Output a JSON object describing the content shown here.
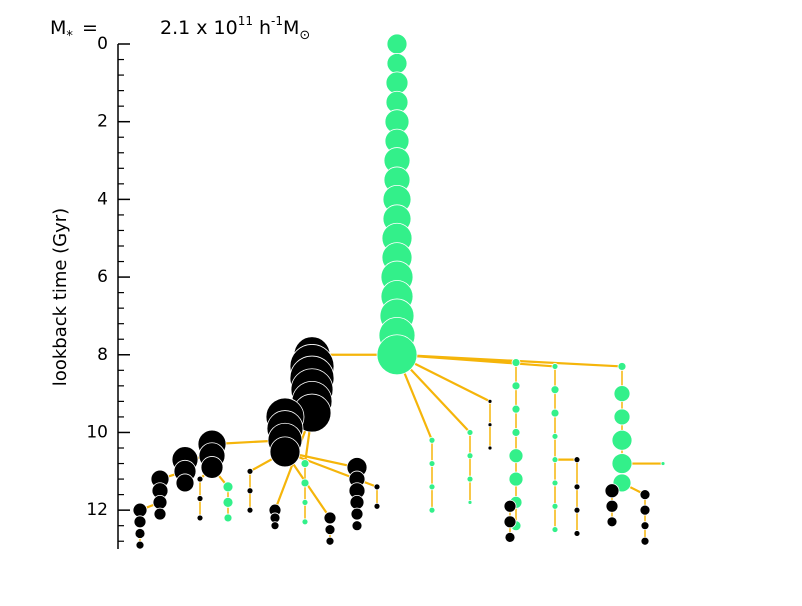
{
  "chart_data": {
    "type": "merger_tree",
    "title": {
      "symbol": "M",
      "symbol_sub": "*",
      "equals": "=",
      "mantissa": "2.1 x 10",
      "exponent": "11",
      "unit": "h",
      "unit_exp": "-1",
      "unit_symbol": "M",
      "unit_sub": "⊙"
    },
    "ylabel": "lookback time (Gyr)",
    "ylim": [
      0,
      13
    ],
    "yticks": [
      0,
      2,
      4,
      6,
      8,
      10,
      12
    ],
    "minor_yticks": [
      0.4,
      0.8,
      1.2,
      1.6,
      2.4,
      2.8,
      3.2,
      3.6,
      4.4,
      4.8,
      5.2,
      5.6,
      6.4,
      6.8,
      7.2,
      7.6,
      8.4,
      8.8,
      9.2,
      9.6,
      10.4,
      10.8,
      11.2,
      11.6,
      12.4,
      12.8
    ],
    "y_inverted": true,
    "link_color": "#f5b50a",
    "branches": [
      {
        "color": "#33f08a",
        "parent": null,
        "times": [
          0,
          0.5,
          1,
          1.5,
          2,
          2.5,
          3,
          3.5,
          4,
          4.5,
          5,
          5.5,
          6,
          6.5,
          7,
          7.5,
          8
        ],
        "sizes": [
          10,
          10,
          11,
          11,
          12,
          12,
          13,
          13,
          14,
          14,
          15,
          15,
          16,
          16,
          17,
          18,
          20
        ]
      },
      {
        "color": "#000000",
        "parent": 0,
        "times": [
          8.0,
          8.3,
          8.6,
          8.9,
          9.2,
          9.5
        ],
        "sizes": [
          18,
          22,
          22,
          21,
          20,
          19
        ]
      },
      {
        "color": "#000000",
        "parent": 1,
        "times": [
          9.6,
          9.9,
          10.2,
          10.5
        ],
        "sizes": [
          19,
          18,
          17,
          15
        ]
      },
      {
        "color": "#000000",
        "parent": 2,
        "times": [
          10.3,
          10.6,
          10.9
        ],
        "sizes": [
          14,
          13,
          11
        ]
      },
      {
        "color": "#000000",
        "parent": 3,
        "times": [
          10.7,
          11.0,
          11.3
        ],
        "sizes": [
          13,
          11,
          9
        ]
      },
      {
        "color": "#000000",
        "parent": 4,
        "times": [
          11.2,
          11.5,
          11.8,
          12.1
        ],
        "sizes": [
          9,
          8,
          7,
          6
        ]
      },
      {
        "color": "#000000",
        "parent": 5,
        "times": [
          12.0,
          12.3,
          12.6,
          12.9
        ],
        "sizes": [
          7,
          6,
          5,
          4
        ]
      },
      {
        "color": "#000000",
        "parent": 2,
        "times": [
          10.9,
          11.2,
          11.5,
          11.8,
          12.1,
          12.4
        ],
        "sizes": [
          10,
          8,
          8,
          7,
          6,
          5
        ]
      },
      {
        "color": "#33f08a",
        "parent": 0,
        "times": [
          8.2,
          8.8,
          9.4,
          10.0,
          10.6,
          11.2,
          11.8,
          12.4
        ],
        "sizes": [
          4,
          4,
          4,
          4,
          7,
          7,
          6,
          5
        ]
      },
      {
        "color": "#33f08a",
        "parent": 0,
        "times": [
          8.3,
          8.9,
          9.5,
          10.1,
          10.7,
          11.3,
          11.9,
          12.5
        ],
        "sizes": [
          3,
          4,
          4,
          3,
          3,
          3,
          3,
          3
        ]
      },
      {
        "color": "#33f08a",
        "parent": 0,
        "times": [
          8.3,
          9.0,
          9.6,
          10.2,
          10.8,
          11.3
        ],
        "sizes": [
          4,
          8,
          8,
          10,
          10,
          9
        ]
      },
      {
        "color": "#000000",
        "parent": 10,
        "times": [
          11.5,
          11.9,
          12.3
        ],
        "sizes": [
          7,
          6,
          5
        ]
      },
      {
        "color": "#000000",
        "parent": 10,
        "times": [
          11.6,
          12.0,
          12.4,
          12.8
        ],
        "sizes": [
          5,
          5,
          4,
          4
        ]
      },
      {
        "color": "#000000",
        "parent": 8,
        "times": [
          11.9,
          12.3,
          12.7
        ],
        "sizes": [
          6,
          6,
          5
        ]
      },
      {
        "color": "#000000",
        "parent": 1,
        "times": [
          12.0,
          12.2,
          12.4
        ],
        "sizes": [
          6,
          5,
          4
        ]
      },
      {
        "color": "#000000",
        "parent": 2,
        "times": [
          12.2,
          12.5,
          12.8
        ],
        "sizes": [
          6,
          5,
          4
        ]
      },
      {
        "color": "#33f08a",
        "parent": 3,
        "times": [
          11.4,
          11.8,
          12.2
        ],
        "sizes": [
          5,
          5,
          4
        ]
      },
      {
        "color": "#33f08a",
        "parent": 1,
        "times": [
          10.8,
          11.3,
          11.8,
          12.3
        ],
        "sizes": [
          4,
          4,
          3,
          3
        ]
      },
      {
        "color": "#33f08a",
        "parent": 0,
        "times": [
          10.2,
          10.8,
          11.4,
          12.0
        ],
        "sizes": [
          3,
          3,
          3,
          3
        ]
      },
      {
        "color": "#33f08a",
        "parent": 0,
        "times": [
          10.0,
          10.6,
          11.2,
          11.8
        ],
        "sizes": [
          3,
          3,
          3,
          2
        ]
      },
      {
        "color": "#000000",
        "parent": 9,
        "times": [
          10.7,
          11.4,
          12.0,
          12.6
        ],
        "sizes": [
          3,
          3,
          3,
          3
        ]
      },
      {
        "color": "#33f08a",
        "parent": 10,
        "times": [
          10.8
        ],
        "sizes": [
          2
        ]
      },
      {
        "color": "#000000",
        "parent": 0,
        "times": [
          9.2,
          9.8,
          10.4
        ],
        "sizes": [
          2,
          2,
          2
        ]
      },
      {
        "color": "#000000",
        "parent": 3,
        "times": [
          11.2,
          11.7,
          12.2
        ],
        "sizes": [
          3,
          3,
          3
        ]
      },
      {
        "color": "#000000",
        "parent": 2,
        "times": [
          11.0,
          11.5,
          12.0
        ],
        "sizes": [
          3,
          3,
          3
        ]
      },
      {
        "color": "#000000",
        "parent": 2,
        "times": [
          11.4,
          11.9
        ],
        "sizes": [
          3,
          3
        ]
      }
    ]
  }
}
